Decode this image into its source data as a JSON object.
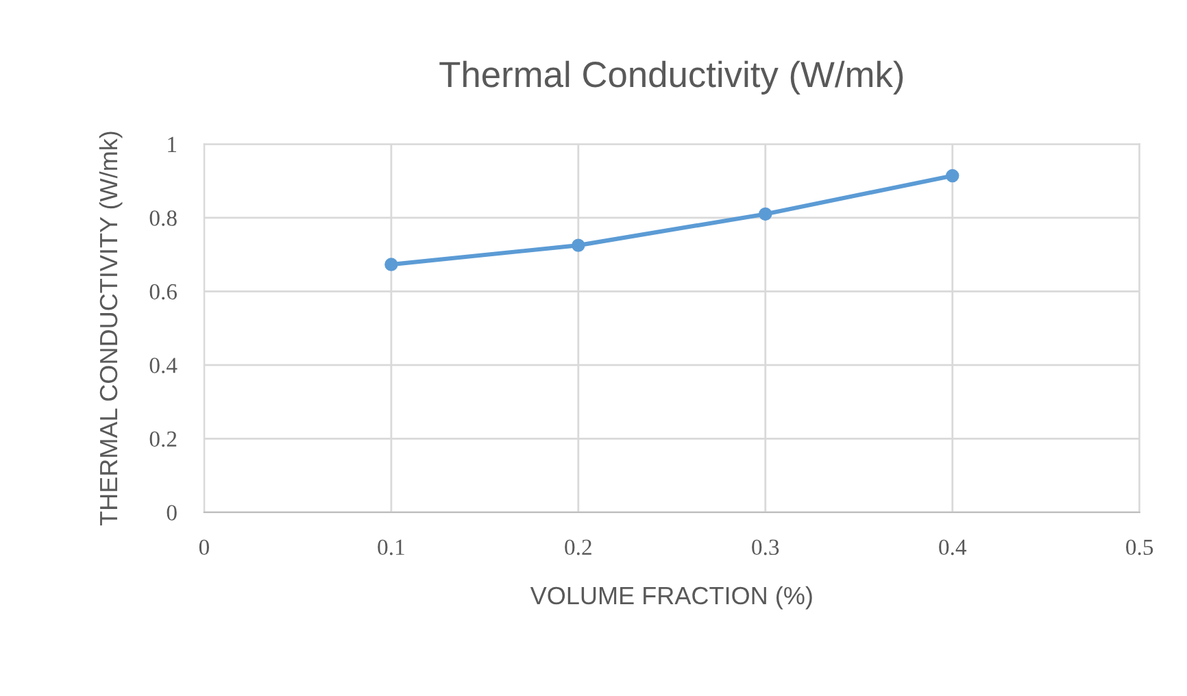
{
  "chart_data": {
    "type": "line",
    "title": "Thermal Conductivity (W/mk)",
    "xlabel": "VOLUME FRACTION (%)",
    "ylabel": "THERMAL CONDUCTIVITY (W/mk)",
    "x": [
      0.1,
      0.2,
      0.3,
      0.4
    ],
    "series": [
      {
        "color": "#5b9bd5",
        "values": [
          0.673,
          0.725,
          0.81,
          0.914
        ]
      }
    ],
    "xlim": [
      0,
      0.5
    ],
    "xticks": [
      0,
      0.1,
      0.2,
      0.3,
      0.4,
      0.5
    ],
    "ylim": [
      0,
      1
    ],
    "yticks": [
      0,
      0.2,
      0.4,
      0.6,
      0.8,
      1
    ],
    "grid": true,
    "marker": "circle",
    "line_style": "solid",
    "legend": false
  }
}
